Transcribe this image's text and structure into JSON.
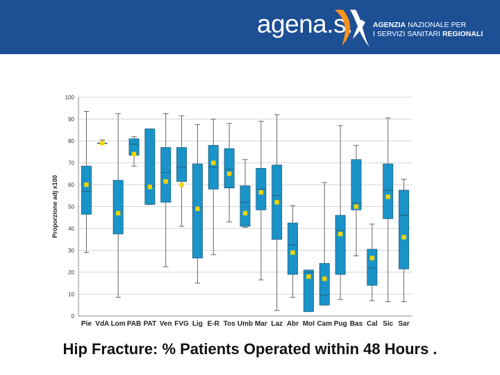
{
  "header": {
    "logo_text": "agena.s.",
    "agency_line1_bold": "AGENZIA",
    "agency_line1_rest": " NAZIONALE PER",
    "agency_line2_rest": "I SERVIZI SANITARI ",
    "agency_line2_bold": "REGIONALI",
    "colors": {
      "banner": "#1d4f95",
      "accent": "#f7941d"
    }
  },
  "caption": "Hip Fracture: % Patients Operated within 48 Hours .",
  "chart_data": {
    "type": "box",
    "title": "",
    "xlabel": "",
    "ylabel": "Proporzione adj x100",
    "ylim": [
      0,
      100
    ],
    "yticks": [
      0,
      10,
      20,
      30,
      40,
      50,
      60,
      70,
      80,
      90,
      100
    ],
    "box_color": "#1a93c8",
    "mean_color": "#f2d500",
    "categories": [
      "Pie",
      "VdA",
      "Lom",
      "PAB",
      "PAT",
      "Ven",
      "FVG",
      "Lig",
      "E-R",
      "Tos",
      "Umb",
      "Mar",
      "Laz",
      "Abr",
      "Mol",
      "Cam",
      "Pug",
      "Bas",
      "Cal",
      "Sic",
      "Sar"
    ],
    "boxes": [
      {
        "min": 29,
        "q1": 46.5,
        "median": 57,
        "q3": 68.5,
        "max": 93.5,
        "mean": 60
      },
      {
        "min": 79,
        "q1": 79,
        "median": 79,
        "q3": 79,
        "max": 80.5,
        "mean": 79
      },
      {
        "min": 8.5,
        "q1": 37.5,
        "median": 47.5,
        "q3": 62,
        "max": 92.5,
        "mean": 47
      },
      {
        "min": 68.5,
        "q1": 73.5,
        "median": 78.5,
        "q3": 81,
        "max": 82,
        "mean": 74
      },
      {
        "min": 51,
        "q1": 51,
        "median": 59.5,
        "q3": 85.5,
        "max": 85.5,
        "mean": 59
      },
      {
        "min": 22.5,
        "q1": 52,
        "median": 65.5,
        "q3": 77,
        "max": 92.5,
        "mean": 61.5
      },
      {
        "min": 41,
        "q1": 61.5,
        "median": 68,
        "q3": 77,
        "max": 91.5,
        "mean": 60
      },
      {
        "min": 15,
        "q1": 26.5,
        "median": 49.5,
        "q3": 69.5,
        "max": 87.5,
        "mean": 49
      },
      {
        "min": 28,
        "q1": 58,
        "median": 68,
        "q3": 78,
        "max": 90,
        "mean": 70
      },
      {
        "min": 43,
        "q1": 58.5,
        "median": 67,
        "q3": 76.5,
        "max": 88,
        "mean": 65
      },
      {
        "min": 40.5,
        "q1": 41,
        "median": 52,
        "q3": 59.5,
        "max": 71.5,
        "mean": 47
      },
      {
        "min": 16.5,
        "q1": 48.5,
        "median": 58,
        "q3": 67.5,
        "max": 89,
        "mean": 56.5
      },
      {
        "min": 2.5,
        "q1": 35,
        "median": 55,
        "q3": 69,
        "max": 92,
        "mean": 52
      },
      {
        "min": 8.5,
        "q1": 19,
        "median": 32.5,
        "q3": 42.5,
        "max": 50.5,
        "mean": 29
      },
      {
        "min": 2,
        "q1": 2,
        "median": 20,
        "q3": 21,
        "max": 21,
        "mean": 18
      },
      {
        "min": 5,
        "q1": 5,
        "median": 9.5,
        "q3": 24,
        "max": 61,
        "mean": 17
      },
      {
        "min": 7.5,
        "q1": 19,
        "median": 39,
        "q3": 46,
        "max": 87,
        "mean": 37.5
      },
      {
        "min": 27.5,
        "q1": 48.5,
        "median": 51.5,
        "q3": 71.5,
        "max": 78,
        "mean": 50
      },
      {
        "min": 7,
        "q1": 14,
        "median": 22,
        "q3": 30.5,
        "max": 42,
        "mean": 26.5
      },
      {
        "min": 6.5,
        "q1": 44.5,
        "median": 57.5,
        "q3": 69.5,
        "max": 90.5,
        "mean": 54.5
      },
      {
        "min": 6.5,
        "q1": 21.5,
        "median": 46,
        "q3": 57.5,
        "max": 62.5,
        "mean": 36
      }
    ]
  }
}
